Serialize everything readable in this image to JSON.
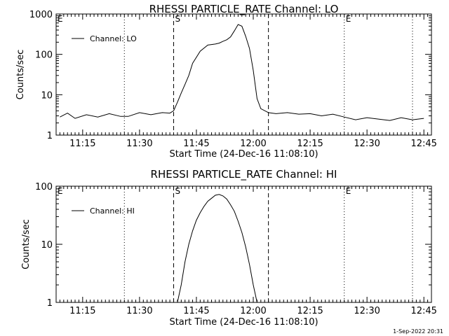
{
  "footer_timestamp": "1-Sep-2022 20:31",
  "chart_data": [
    {
      "type": "line",
      "title": "RHESSI PARTICLE_RATE Channel: LO",
      "xlabel": "Start Time (24-Dec-16 11:08:10)",
      "ylabel": "Counts/sec",
      "yscale": "log",
      "ylim": [
        1,
        1000
      ],
      "xlim": [
        "11:08",
        "12:47"
      ],
      "x_ticks": [
        "11:15",
        "11:30",
        "11:45",
        "12:00",
        "12:15",
        "12:30",
        "12:45"
      ],
      "y_ticks": [
        "1",
        "10",
        "100",
        "1000"
      ],
      "legend": "Channel: LO",
      "legend_position": "top-left",
      "markers": [
        {
          "label": "E",
          "time": "11:08",
          "style": "dotted"
        },
        {
          "label": "",
          "time": "11:26",
          "style": "dotted"
        },
        {
          "label": "S",
          "time": "11:39",
          "style": "dashed"
        },
        {
          "label": "",
          "time": "12:04",
          "style": "dashed"
        },
        {
          "label": "E",
          "time": "12:24",
          "style": "dotted"
        },
        {
          "label": "",
          "time": "12:42",
          "style": "dotted"
        }
      ],
      "series": [
        {
          "name": "Channel: LO",
          "x": [
            "11:09",
            "11:11",
            "11:13",
            "11:16",
            "11:19",
            "11:22",
            "11:25",
            "11:27",
            "11:30",
            "11:33",
            "11:36",
            "11:38",
            "11:39",
            "11:40",
            "11:41",
            "11:42",
            "11:43",
            "11:44",
            "11:46",
            "11:48",
            "11:50",
            "11:51",
            "11:52",
            "11:53",
            "11:54",
            "11:55",
            "11:56",
            "11:57",
            "11:58",
            "11:59",
            "12:00",
            "12:01",
            "12:02",
            "12:04",
            "12:06",
            "12:09",
            "12:12",
            "12:15",
            "12:18",
            "12:21",
            "12:24",
            "12:27",
            "12:30",
            "12:33",
            "12:36",
            "12:39",
            "12:42",
            "12:45"
          ],
          "y": [
            2.8,
            3.5,
            2.6,
            3.2,
            2.8,
            3.4,
            2.9,
            2.9,
            3.6,
            3.2,
            3.6,
            3.5,
            4.0,
            6.5,
            11,
            18,
            30,
            60,
            120,
            170,
            180,
            190,
            210,
            230,
            270,
            380,
            550,
            500,
            280,
            140,
            40,
            8,
            4.5,
            3.6,
            3.4,
            3.6,
            3.3,
            3.4,
            3.0,
            3.3,
            2.8,
            2.4,
            2.7,
            2.5,
            2.3,
            2.7,
            2.4,
            2.6
          ]
        }
      ]
    },
    {
      "type": "line",
      "title": "RHESSI PARTICLE_RATE Channel: HI",
      "xlabel": "Start Time (24-Dec-16 11:08:10)",
      "ylabel": "Counts/sec",
      "yscale": "log",
      "ylim": [
        1,
        100
      ],
      "xlim": [
        "11:08",
        "12:47"
      ],
      "x_ticks": [
        "11:15",
        "11:30",
        "11:45",
        "12:00",
        "12:15",
        "12:30",
        "12:45"
      ],
      "y_ticks": [
        "1",
        "10",
        "100"
      ],
      "legend": "Channel: HI",
      "legend_position": "top-left",
      "markers": [
        {
          "label": "E",
          "time": "11:08",
          "style": "dotted"
        },
        {
          "label": "",
          "time": "11:26",
          "style": "dotted"
        },
        {
          "label": "S",
          "time": "11:39",
          "style": "dashed"
        },
        {
          "label": "",
          "time": "12:04",
          "style": "dashed"
        },
        {
          "label": "E",
          "time": "12:24",
          "style": "dotted"
        },
        {
          "label": "",
          "time": "12:42",
          "style": "dotted"
        }
      ],
      "series": [
        {
          "name": "Channel: HI",
          "x": [
            "11:40",
            "11:41",
            "11:42",
            "11:43",
            "11:44",
            "11:45",
            "11:46",
            "11:47",
            "11:48",
            "11:49",
            "11:50",
            "11:51",
            "11:52",
            "11:53",
            "11:54",
            "11:55",
            "11:56",
            "11:57",
            "11:58",
            "11:59",
            "12:00",
            "12:01"
          ],
          "y": [
            1,
            2,
            5,
            10,
            17,
            26,
            35,
            45,
            55,
            62,
            70,
            72,
            68,
            60,
            48,
            37,
            25,
            16,
            9,
            4.5,
            2,
            1
          ]
        }
      ]
    }
  ]
}
